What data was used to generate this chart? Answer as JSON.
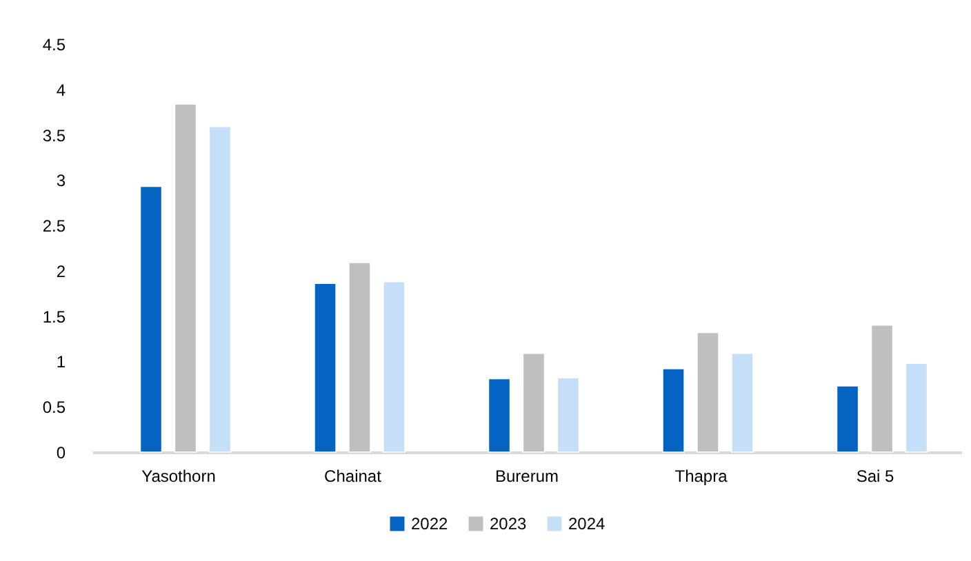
{
  "chart_data": {
    "type": "bar",
    "categories": [
      "Yasothorn",
      "Chainat",
      "Burerum",
      "Thapra",
      "Sai 5"
    ],
    "series": [
      {
        "name": "2022",
        "color": "#0563c1",
        "values": [
          2.93,
          1.86,
          0.81,
          0.92,
          0.73
        ]
      },
      {
        "name": "2023",
        "color": "#bfbfbf",
        "values": [
          3.84,
          2.09,
          1.09,
          1.32,
          1.4
        ]
      },
      {
        "name": "2024",
        "color": "#c5dff8",
        "values": [
          3.59,
          1.88,
          0.82,
          1.09,
          0.98
        ]
      }
    ],
    "ylim": [
      0,
      4.5
    ],
    "yticks": [
      0,
      0.5,
      1,
      1.5,
      2,
      2.5,
      3,
      3.5,
      4,
      4.5
    ],
    "grid": false,
    "legend": "bottom"
  }
}
